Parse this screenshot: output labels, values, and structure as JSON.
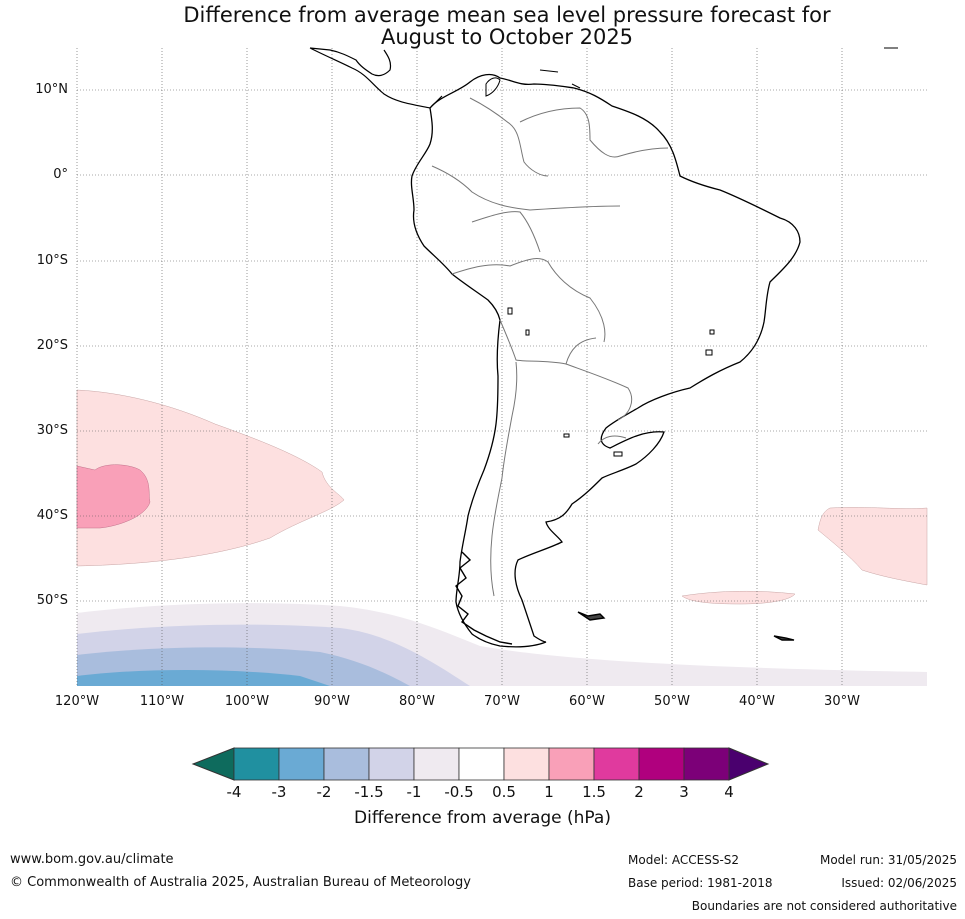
{
  "title_line1": "Difference from average mean sea level pressure forecast for",
  "title_line2": "August to October 2025",
  "lat_labels": [
    "10°N",
    "0°",
    "10°S",
    "20°S",
    "30°S",
    "40°S",
    "50°S"
  ],
  "lon_labels": [
    "120°W",
    "110°W",
    "100°W",
    "90°W",
    "80°W",
    "70°W",
    "60°W",
    "50°W",
    "40°W",
    "30°W"
  ],
  "colorbar": {
    "title": "Difference from average (hPa)",
    "labels": [
      "-4",
      "-3",
      "-2",
      "-1.5",
      "-1",
      "-0.5",
      "0.5",
      "1",
      "1.5",
      "2",
      "3",
      "4"
    ],
    "colors": [
      "#0e6b5d",
      "#2090a0",
      "#6aaad4",
      "#a9bddd",
      "#d2d3e8",
      "#efeaf0",
      "#ffffff",
      "#fde0e0",
      "#f9a0b8",
      "#e03a9e",
      "#b0007e",
      "#7c0078",
      "#4a006e"
    ]
  },
  "footer": {
    "url": "www.bom.gov.au/climate",
    "copyright": "© Commonwealth of Australia 2025, Australian Bureau of Meteorology",
    "model": "Model: ACCESS-S2",
    "base_period": "Base period: 1981-2018",
    "model_run": "Model run: 31/05/2025",
    "issued": "Issued: 02/06/2025",
    "disclaimer": "Boundaries are not considered authoritative"
  }
}
